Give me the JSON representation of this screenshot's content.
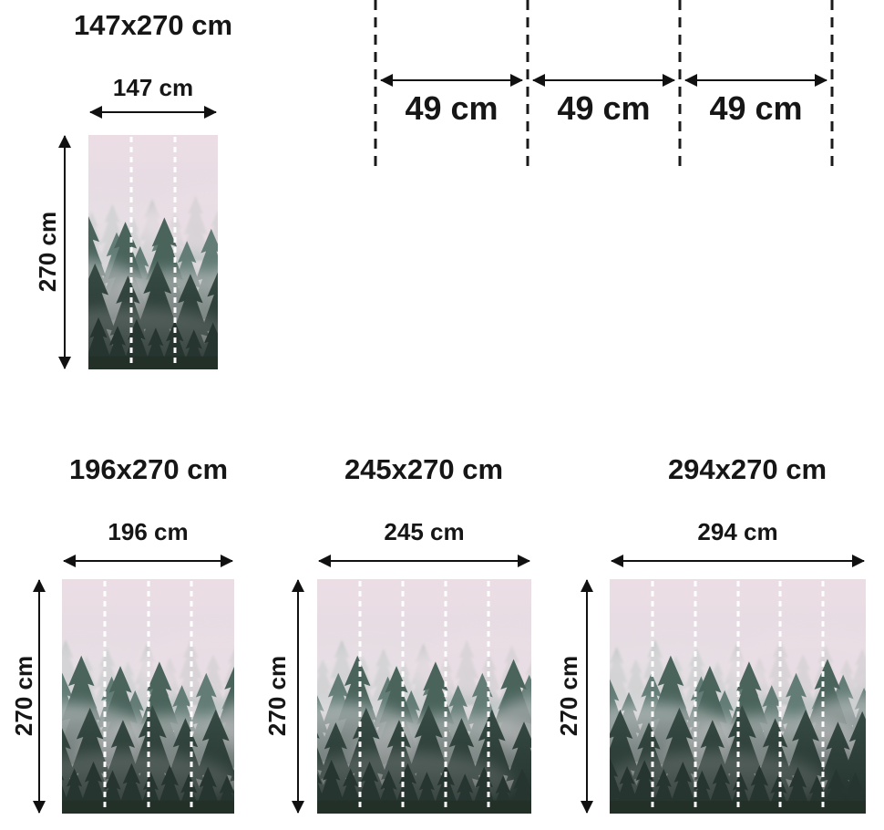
{
  "page": {
    "background_color": "#ffffff",
    "text_color": "#161616"
  },
  "panel_diagram": {
    "description": "wallpaper roll panel widths between cut lines",
    "panels": [
      {
        "width_label": "49 cm"
      },
      {
        "width_label": "49 cm"
      },
      {
        "width_label": "49 cm"
      }
    ]
  },
  "figures": [
    {
      "title": "147x270 cm",
      "width_label": "147 cm",
      "height_label": "270 cm",
      "panels": 3
    },
    {
      "title": "196x270 cm",
      "width_label": "196 cm",
      "height_label": "270 cm",
      "panels": 4
    },
    {
      "title": "245x270 cm",
      "width_label": "245 cm",
      "height_label": "270 cm",
      "panels": 5
    },
    {
      "title": "294x270 cm",
      "width_label": "294 cm",
      "height_label": "270 cm",
      "panels": 6
    }
  ],
  "mural_image": {
    "alt": "Evergreen forest in fog with pale pink sky",
    "colors": {
      "sky": "#e9dce3",
      "fog": "#e8e5e8",
      "trees_far": "#9fb1ab",
      "trees_mid": "#5e7871",
      "trees_near": "#374b44",
      "trees_foreground": "#273530"
    }
  }
}
